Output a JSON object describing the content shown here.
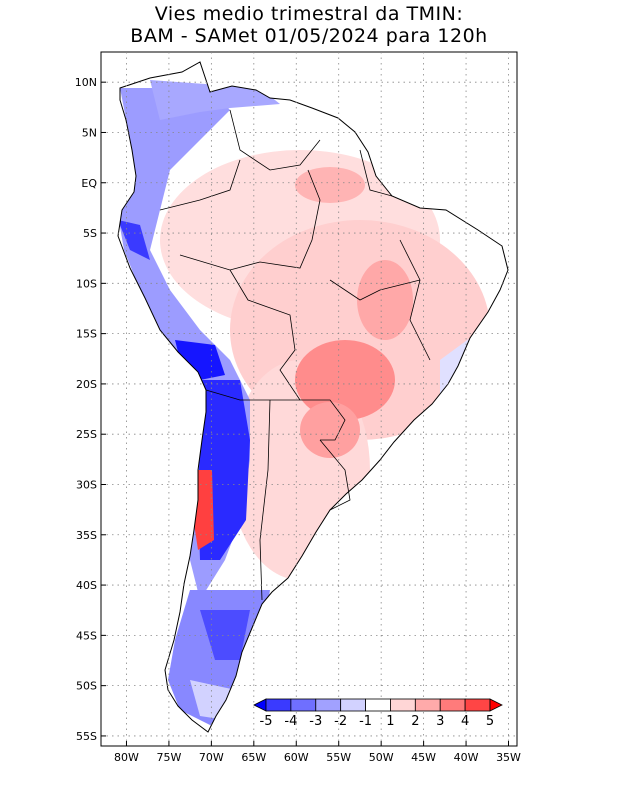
{
  "title_line1": "Vies medio trimestral da TMIN:",
  "title_line2": "BAM - SAMet 01/05/2024  para 120h",
  "map": {
    "lat_ticks": [
      {
        "label": "10N",
        "lat": 10
      },
      {
        "label": "5N",
        "lat": 5
      },
      {
        "label": "EQ",
        "lat": 0
      },
      {
        "label": "5S",
        "lat": -5
      },
      {
        "label": "10S",
        "lat": -10
      },
      {
        "label": "15S",
        "lat": -15
      },
      {
        "label": "20S",
        "lat": -20
      },
      {
        "label": "25S",
        "lat": -25
      },
      {
        "label": "30S",
        "lat": -30
      },
      {
        "label": "35S",
        "lat": -35
      },
      {
        "label": "40S",
        "lat": -40
      },
      {
        "label": "45S",
        "lat": -45
      },
      {
        "label": "50S",
        "lat": -50
      },
      {
        "label": "55S",
        "lat": -55
      }
    ],
    "lon_ticks": [
      {
        "label": "80W",
        "lon": -80
      },
      {
        "label": "75W",
        "lon": -75
      },
      {
        "label": "70W",
        "lon": -70
      },
      {
        "label": "65W",
        "lon": -65
      },
      {
        "label": "60W",
        "lon": -60
      },
      {
        "label": "55W",
        "lon": -55
      },
      {
        "label": "50W",
        "lon": -50
      },
      {
        "label": "45W",
        "lon": -45
      },
      {
        "label": "40W",
        "lon": -40
      },
      {
        "label": "35W",
        "lon": -35
      }
    ]
  },
  "colorbar": {
    "labels": [
      "-5",
      "-4",
      "-3",
      "-2",
      "-1",
      "1",
      "2",
      "3",
      "4",
      "5"
    ],
    "colors": [
      "#0000ff",
      "#3a3aff",
      "#6f6fff",
      "#a1a1ff",
      "#d2d2ff",
      "#ffffff",
      "#ffd6d6",
      "#ffaaaa",
      "#ff7b7b",
      "#ff4545",
      "#ff0000"
    ]
  },
  "colors": {
    "strong_cold": "#1515ff",
    "cold": "#8c8cff",
    "mild_cold": "#d2d2ff",
    "mild_warm": "#ffd6d6",
    "warm": "#ff9a9a",
    "strong_warm": "#ff3a3a"
  }
}
